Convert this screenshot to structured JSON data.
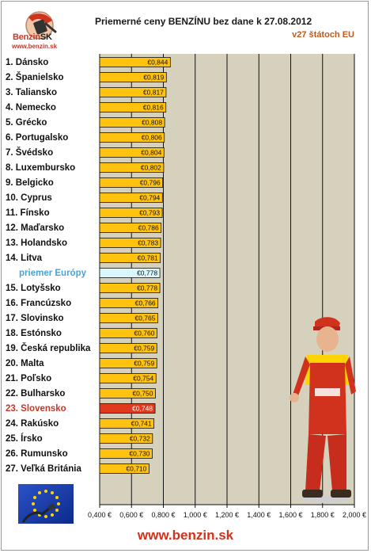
{
  "header": {
    "title": "Priemerné ceny BENZÍNU bez dane k 27.08.2012",
    "subtitle": "v27 štátoch EU"
  },
  "logo": {
    "brand": "Benzin",
    "brand_suffix": "SK",
    "url": "www.benzin.sk"
  },
  "footer": {
    "url": "www.benzin.sk"
  },
  "colors": {
    "bar": "#ffc20e",
    "bar_average": "#d9f7fb",
    "bar_highlight": "#e03a1e",
    "plot_background": "#d6d1bd",
    "accent": "#d0321e",
    "average_label": "#4aa3d8"
  },
  "chart_data": {
    "type": "bar",
    "orientation": "horizontal",
    "title": "Priemerné ceny BENZÍNU bez dane k 27.08.2012",
    "subtitle": "v27 štátoch EU",
    "categories": [
      "1. Dánsko",
      "2. Španielsko",
      "3. Taliansko",
      "4. Nemecko",
      "5. Grécko",
      "6. Portugalsko",
      "7. Švédsko",
      "8. Luxembursko",
      "9. Belgicko",
      "10. Cyprus",
      "11. Fínsko",
      "12. Maďarsko",
      "13. Holandsko",
      "14. Litva",
      "priemer Európy",
      "15. Lotyšsko",
      "16. Francúzsko",
      "17. Slovinsko",
      "18. Estónsko",
      "19. Česká republika",
      "20. Malta",
      "21. Poľsko",
      "22. Bulharsko",
      "23. Slovensko",
      "24. Rakúsko",
      "25. Írsko",
      "26. Rumunsko",
      "27. Veľká Británia"
    ],
    "values": [
      0.844,
      0.819,
      0.817,
      0.816,
      0.808,
      0.806,
      0.804,
      0.802,
      0.796,
      0.794,
      0.793,
      0.786,
      0.783,
      0.781,
      0.778,
      0.778,
      0.766,
      0.765,
      0.76,
      0.759,
      0.759,
      0.754,
      0.75,
      0.748,
      0.741,
      0.732,
      0.73,
      0.71
    ],
    "value_labels": [
      "€0,844",
      "€0,819",
      "€0,817",
      "€0,816",
      "€0,808",
      "€0,806",
      "€0,804",
      "€0,802",
      "€0,796",
      "€0,794",
      "€0,793",
      "€0,786",
      "€0,783",
      "€0,781",
      "€0,778",
      "€0,778",
      "€0,766",
      "€0,765",
      "€0,760",
      "€0,759",
      "€0,759",
      "€0,754",
      "€0,750",
      "€0,748",
      "€0,741",
      "€0,732",
      "€0,730",
      "€0,710"
    ],
    "average_index": 14,
    "highlight_index": 23,
    "xlim": [
      0.4,
      2.0
    ],
    "xticks": [
      0.4,
      0.6,
      0.8,
      1.0,
      1.2,
      1.4,
      1.6,
      1.8,
      2.0
    ],
    "xtick_labels": [
      "0,400 €",
      "0,600 €",
      "0,800 €",
      "1,000 €",
      "1,200 €",
      "1,400 €",
      "1,600 €",
      "1,800 €",
      "2,000 €"
    ],
    "grid": true
  }
}
